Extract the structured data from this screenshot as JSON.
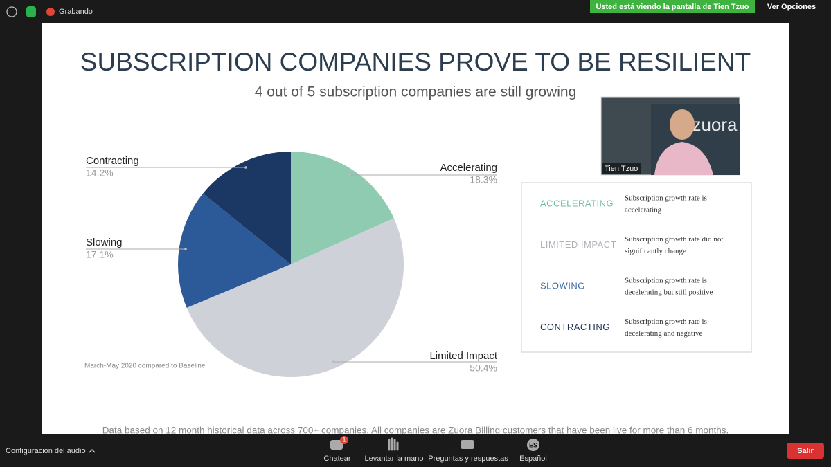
{
  "top_bar": {
    "recording": "Grabando",
    "banner": "Usted está viendo la pantalla de Tien Tzuo",
    "view_options": "Ver Opciones"
  },
  "slide": {
    "title": "SUBSCRIPTION COMPANIES PROVE TO BE RESILIENT",
    "subtitle": "4 out of 5 subscription companies are still growing",
    "note": "March-May 2020 compared to Baseline",
    "footnote": "Data based on 12 month historical data across 700+ companies. All companies are Zuora Billing customers that have been live for more than 6 months.",
    "chart": {
      "type": "pie",
      "categories": [
        "Accelerating",
        "Limited Impact",
        "Slowing",
        "Contracting"
      ],
      "values": [
        18.3,
        50.4,
        17.1,
        14.2
      ],
      "value_labels": [
        "18.3%",
        "50.4%",
        "17.1%",
        "14.2%"
      ],
      "colors": [
        "#8fcbb1",
        "#cfd1d8",
        "#2c5a99",
        "#1b3764"
      ]
    },
    "legend": [
      {
        "term": "ACCELERATING",
        "color": "#6dbf9c",
        "description": [
          "Subscription growth rate is",
          "accelerating"
        ]
      },
      {
        "term": "LIMITED IMPACT",
        "color": "#aeb1b8",
        "description": [
          "Subscription growth rate did not",
          "significantly change"
        ]
      },
      {
        "term": "SLOWING",
        "color": "#3d6aa6",
        "description": [
          "Subscription growth rate is",
          "decelerating but still positive"
        ]
      },
      {
        "term": "CONTRACTING",
        "color": "#1c2f50",
        "description": [
          "Subscription growth rate is",
          "decelerating and negative"
        ]
      }
    ]
  },
  "video": {
    "name": "Tien Tzuo",
    "logo": "zuora"
  },
  "toolbar": {
    "audio": "Configuración del audio",
    "chat_badge": 1,
    "language_code": "ES",
    "buttons": [
      "Chatear",
      "Levantar la mano",
      "Preguntas y respuestas",
      "Español"
    ],
    "leave": "Salir"
  }
}
